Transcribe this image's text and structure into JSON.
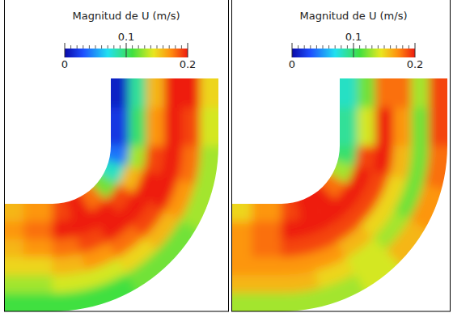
{
  "chart_data": [
    {
      "type": "contour",
      "title": "Magnitud de U (m/s)",
      "colorbar_range": [
        0,
        0.2
      ],
      "colorbar_ticks": [
        0,
        0.1,
        0.2
      ],
      "cells": [
        [
          0.16,
          0.17,
          0.16,
          0.15,
          0.13,
          0.11
        ],
        [
          0.17,
          0.18,
          0.17,
          0.15,
          0.13,
          0.11
        ],
        [
          0.19,
          0.2,
          0.18,
          0.16,
          0.14,
          0.11
        ],
        [
          0.2,
          0.2,
          0.19,
          0.17,
          0.14,
          0.11
        ],
        [
          0.18,
          0.2,
          0.2,
          0.18,
          0.15,
          0.12
        ],
        [
          0.12,
          0.19,
          0.2,
          0.19,
          0.16,
          0.12
        ],
        [
          0.08,
          0.16,
          0.2,
          0.2,
          0.17,
          0.13
        ],
        [
          0.04,
          0.13,
          0.19,
          0.2,
          0.18,
          0.13
        ],
        [
          0.02,
          0.1,
          0.17,
          0.2,
          0.19,
          0.14
        ],
        [
          0.01,
          0.09,
          0.16,
          0.2,
          0.2,
          0.15
        ]
      ]
    },
    {
      "type": "contour",
      "title": "Magnitud de U (m/s)",
      "colorbar_range": [
        0,
        0.2
      ],
      "colorbar_ticks": [
        0,
        0.1,
        0.2
      ],
      "cells": [
        [
          0.15,
          0.17,
          0.17,
          0.17,
          0.16,
          0.13
        ],
        [
          0.17,
          0.18,
          0.18,
          0.17,
          0.16,
          0.13
        ],
        [
          0.19,
          0.2,
          0.19,
          0.17,
          0.16,
          0.13
        ],
        [
          0.2,
          0.2,
          0.19,
          0.17,
          0.15,
          0.13
        ],
        [
          0.2,
          0.2,
          0.19,
          0.16,
          0.14,
          0.14
        ],
        [
          0.18,
          0.2,
          0.19,
          0.15,
          0.13,
          0.16
        ],
        [
          0.13,
          0.2,
          0.19,
          0.15,
          0.12,
          0.17
        ],
        [
          0.1,
          0.19,
          0.2,
          0.16,
          0.12,
          0.18
        ],
        [
          0.09,
          0.14,
          0.2,
          0.17,
          0.12,
          0.19
        ],
        [
          0.08,
          0.12,
          0.18,
          0.18,
          0.13,
          0.19
        ]
      ]
    }
  ]
}
